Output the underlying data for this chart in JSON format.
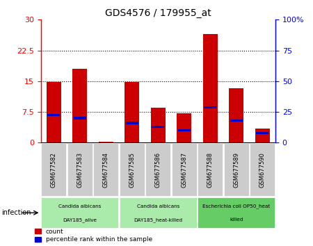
{
  "title": "GDS4576 / 179955_at",
  "samples": [
    "GSM677582",
    "GSM677583",
    "GSM677584",
    "GSM677585",
    "GSM677586",
    "GSM677587",
    "GSM677588",
    "GSM677589",
    "GSM677590"
  ],
  "count_values": [
    14.8,
    18.0,
    0.3,
    14.8,
    8.5,
    7.2,
    26.5,
    13.2,
    3.5
  ],
  "percentile_values": [
    22.5,
    20.0,
    0.0,
    16.0,
    13.0,
    10.0,
    28.5,
    18.0,
    8.0
  ],
  "groups": [
    {
      "label1": "Candida albicans",
      "label2": "DAY185_alive",
      "start": 0,
      "end": 3,
      "color": "#aaeaaa"
    },
    {
      "label1": "Candida albicans",
      "label2": "DAY185_heat-killed",
      "start": 3,
      "end": 6,
      "color": "#aaeaaa"
    },
    {
      "label1": "Escherichia coli OP50_heat",
      "label2": "killed",
      "start": 6,
      "end": 9,
      "color": "#66cc66"
    }
  ],
  "ylim_left": [
    0,
    30
  ],
  "ylim_right": [
    0,
    100
  ],
  "yticks_left": [
    0,
    7.5,
    15,
    22.5,
    30
  ],
  "yticks_right": [
    0,
    25,
    50,
    75,
    100
  ],
  "bar_color": "#cc0000",
  "percentile_color": "#0000cc",
  "bar_width": 0.55,
  "xtick_bg": "#cccccc",
  "infection_label": "infection"
}
